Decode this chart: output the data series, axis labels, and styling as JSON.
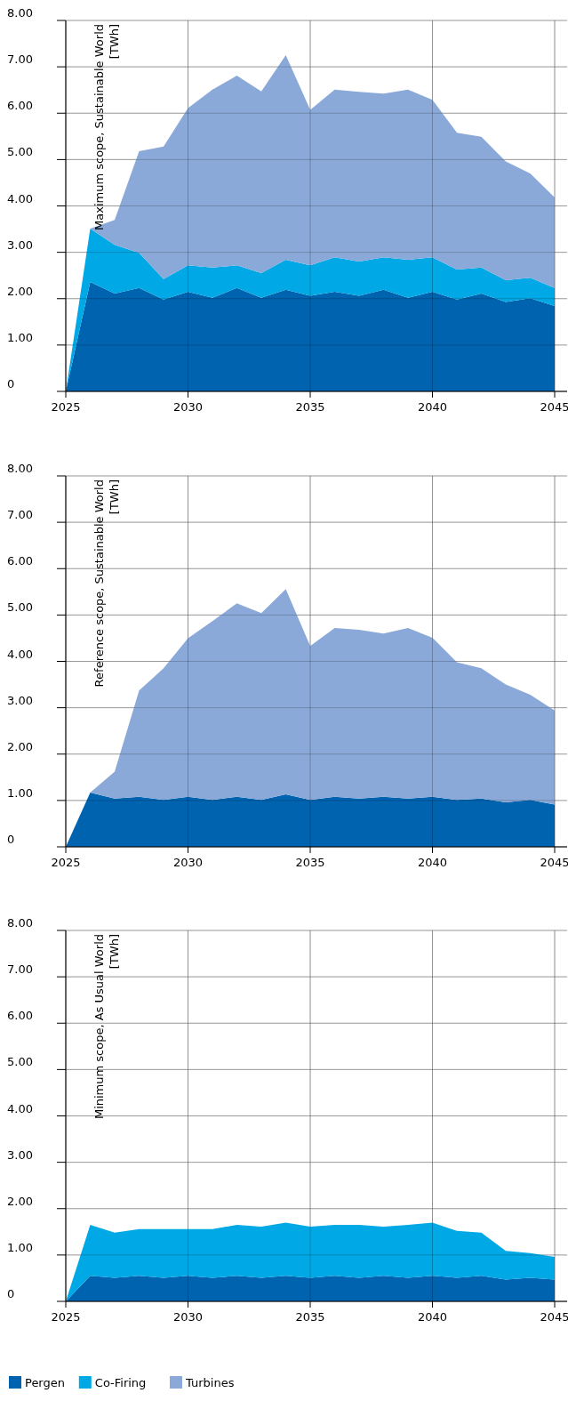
{
  "chart_data": [
    {
      "type": "area",
      "stacked": true,
      "ylabel": "Maximum scope, Sustainable World [TWh]",
      "x": [
        2025,
        2026,
        2027,
        2028,
        2029,
        2030,
        2031,
        2032,
        2033,
        2034,
        2035,
        2036,
        2037,
        2038,
        2039,
        2040,
        2041,
        2042,
        2043,
        2044,
        2045
      ],
      "xlim": [
        2025,
        2045
      ],
      "xticks": [
        2025,
        2030,
        2035,
        2040,
        2045
      ],
      "ylim": [
        0,
        8
      ],
      "yticks": [
        {
          "value": 0,
          "label": "0"
        },
        {
          "value": 1,
          "label": "1.00"
        },
        {
          "value": 2,
          "label": "2.00"
        },
        {
          "value": 3,
          "label": "3.00"
        },
        {
          "value": 4,
          "label": "4.00"
        },
        {
          "value": 5,
          "label": "5.00"
        },
        {
          "value": 6,
          "label": "6.00"
        },
        {
          "value": 7,
          "label": "7.00"
        },
        {
          "value": 8,
          "label": "8.00"
        }
      ],
      "grid": true,
      "legend": "bottom left",
      "series": [
        {
          "name": "Pergen",
          "color": "#0063af",
          "values": [
            0,
            2.36,
            2.11,
            2.23,
            1.98,
            2.15,
            2.02,
            2.23,
            2.02,
            2.19,
            2.06,
            2.15,
            2.06,
            2.19,
            2.02,
            2.15,
            1.98,
            2.11,
            1.93,
            2.01,
            1.84
          ]
        },
        {
          "name": "Co-Firing",
          "color": "#00a9e6",
          "values": [
            0,
            1.15,
            1.05,
            0.76,
            0.44,
            0.57,
            0.65,
            0.49,
            0.53,
            0.65,
            0.66,
            0.74,
            0.74,
            0.7,
            0.82,
            0.74,
            0.65,
            0.56,
            0.47,
            0.44,
            0.39
          ]
        },
        {
          "name": "Turbines",
          "color": "#8aa9d8",
          "values": [
            0,
            0,
            0.54,
            2.19,
            2.86,
            3.39,
            3.84,
            4.09,
            3.92,
            4.41,
            3.35,
            3.62,
            3.66,
            3.53,
            3.67,
            3.4,
            2.95,
            2.82,
            2.56,
            2.25,
            1.95
          ]
        }
      ]
    },
    {
      "type": "area",
      "stacked": true,
      "ylabel": "Reference scope, Sustainable World [TWh]",
      "x": [
        2025,
        2026,
        2027,
        2028,
        2029,
        2030,
        2031,
        2032,
        2033,
        2034,
        2035,
        2036,
        2037,
        2038,
        2039,
        2040,
        2041,
        2042,
        2043,
        2044,
        2045
      ],
      "xlim": [
        2025,
        2045
      ],
      "xticks": [
        2025,
        2030,
        2035,
        2040,
        2045
      ],
      "ylim": [
        0,
        8
      ],
      "yticks": [
        {
          "value": 0,
          "label": "0"
        },
        {
          "value": 1,
          "label": "1.00"
        },
        {
          "value": 2,
          "label": "2.00"
        },
        {
          "value": 3,
          "label": "3.00"
        },
        {
          "value": 4,
          "label": "4.00"
        },
        {
          "value": 5,
          "label": "5.00"
        },
        {
          "value": 6,
          "label": "6.00"
        },
        {
          "value": 7,
          "label": "7.00"
        },
        {
          "value": 8,
          "label": "8.00"
        }
      ],
      "grid": true,
      "legend": false,
      "series": [
        {
          "color": "#0063af",
          "values": [
            0,
            1.17,
            1.04,
            1.08,
            1.01,
            1.08,
            1.01,
            1.08,
            1.01,
            1.13,
            1.01,
            1.08,
            1.04,
            1.08,
            1.04,
            1.08,
            1.01,
            1.04,
            0.96,
            1.01,
            0.91
          ]
        },
        {
          "color": "#8aa9d8",
          "values": [
            0,
            0,
            0.58,
            2.29,
            2.84,
            3.42,
            3.86,
            4.17,
            4.03,
            4.43,
            3.32,
            3.64,
            3.64,
            3.52,
            3.68,
            3.43,
            2.97,
            2.81,
            2.54,
            2.27,
            2.03
          ]
        }
      ]
    },
    {
      "type": "area",
      "stacked": true,
      "ylabel": "Minimum scope, As Usual World [TWh]",
      "x": [
        2025,
        2026,
        2027,
        2028,
        2029,
        2030,
        2031,
        2032,
        2033,
        2034,
        2035,
        2036,
        2037,
        2038,
        2039,
        2040,
        2041,
        2042,
        2043,
        2044,
        2045
      ],
      "xlim": [
        2025,
        2045
      ],
      "xticks": [
        2025,
        2030,
        2035,
        2040,
        2045
      ],
      "ylim": [
        0,
        8
      ],
      "yticks": [
        {
          "value": 0,
          "label": "0"
        },
        {
          "value": 1,
          "label": "1.00"
        },
        {
          "value": 2,
          "label": "2.00"
        },
        {
          "value": 3,
          "label": "3.00"
        },
        {
          "value": 4,
          "label": "4.00"
        },
        {
          "value": 5,
          "label": "5.00"
        },
        {
          "value": 6,
          "label": "6.00"
        },
        {
          "value": 7,
          "label": "7.00"
        },
        {
          "value": 8,
          "label": "8.00"
        }
      ],
      "grid": true,
      "legend": false,
      "series": [
        {
          "color": "#0063af",
          "values": [
            0,
            0.55,
            0.51,
            0.55,
            0.51,
            0.55,
            0.51,
            0.55,
            0.51,
            0.55,
            0.51,
            0.55,
            0.51,
            0.55,
            0.51,
            0.55,
            0.51,
            0.55,
            0.47,
            0.51,
            0.47
          ]
        },
        {
          "color": "#00a9e6",
          "values": [
            0,
            1.1,
            0.97,
            1.01,
            1.05,
            1.01,
            1.05,
            1.1,
            1.1,
            1.15,
            1.1,
            1.1,
            1.14,
            1.06,
            1.14,
            1.15,
            1.01,
            0.93,
            0.62,
            0.53,
            0.49
          ]
        }
      ]
    }
  ]
}
